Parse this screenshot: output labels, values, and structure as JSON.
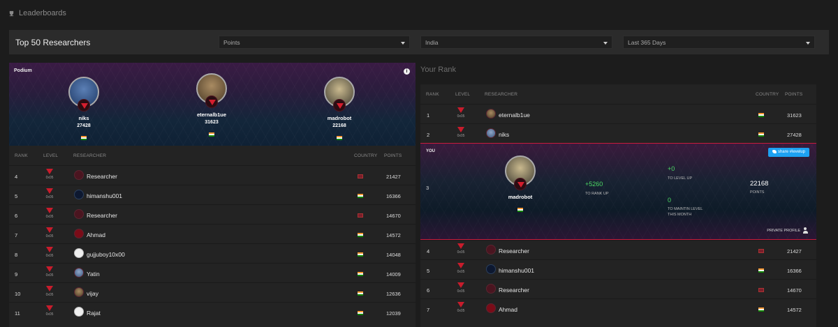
{
  "header": {
    "title": "Leaderboards"
  },
  "filters": {
    "title": "Top 50 Researchers",
    "metric": "Points",
    "country": "India",
    "period": "Last 365 Days"
  },
  "podium": {
    "label": "Podium",
    "first": {
      "name": "eternalb1ue",
      "points": "31623"
    },
    "second": {
      "name": "niks",
      "points": "27428"
    },
    "third": {
      "name": "madrobot",
      "points": "22168"
    }
  },
  "columns": {
    "rank": "RANK",
    "level": "LEVEL",
    "researcher": "RESEARCHER",
    "country": "COUNTRY",
    "points": "POINTS"
  },
  "left_rows": [
    {
      "rank": "4",
      "level": "0x05",
      "name": "Researcher",
      "points": "21427"
    },
    {
      "rank": "5",
      "level": "0x05",
      "name": "himanshu001",
      "points": "16366"
    },
    {
      "rank": "6",
      "level": "0x05",
      "name": "Researcher",
      "points": "14670"
    },
    {
      "rank": "7",
      "level": "0x05",
      "name": "Ahmad",
      "points": "14572"
    },
    {
      "rank": "8",
      "level": "0x05",
      "name": "gujjuboy10x00",
      "points": "14048"
    },
    {
      "rank": "9",
      "level": "0x05",
      "name": "Yatin",
      "points": "14009"
    },
    {
      "rank": "10",
      "level": "0x05",
      "name": "vijay",
      "points": "12636"
    },
    {
      "rank": "11",
      "level": "0x05",
      "name": "Rajat",
      "points": "12039"
    }
  ],
  "your_rank": {
    "title": "Your Rank",
    "top_rows": [
      {
        "rank": "1",
        "level": "0x05",
        "name": "eternalb1ue",
        "points": "31623"
      },
      {
        "rank": "2",
        "level": "0x05",
        "name": "niks",
        "points": "27428"
      }
    ],
    "you": {
      "label": "YOU",
      "share": "share #levelup",
      "rank": "3",
      "name": "madrobot",
      "to_rank_up_value": "+5260",
      "to_rank_up_label": "TO RANK UP",
      "to_level_up_value": "+0",
      "to_level_up_label": "TO LEVEL UP",
      "maintain_value": "0",
      "maintain_label_1": "TO MAINTIN LEVEL",
      "maintain_label_2": "THIS MONTH",
      "points_value": "22168",
      "points_label": "POINTS",
      "private": "PRIVATE PROFILE"
    },
    "bottom_rows": [
      {
        "rank": "4",
        "level": "0x05",
        "name": "Researcher",
        "points": "21427"
      },
      {
        "rank": "5",
        "level": "0x05",
        "name": "himanshu001",
        "points": "16366"
      },
      {
        "rank": "6",
        "level": "0x05",
        "name": "Researcher",
        "points": "14670"
      },
      {
        "rank": "7",
        "level": "0x05",
        "name": "Ahmad",
        "points": "14572"
      }
    ]
  }
}
